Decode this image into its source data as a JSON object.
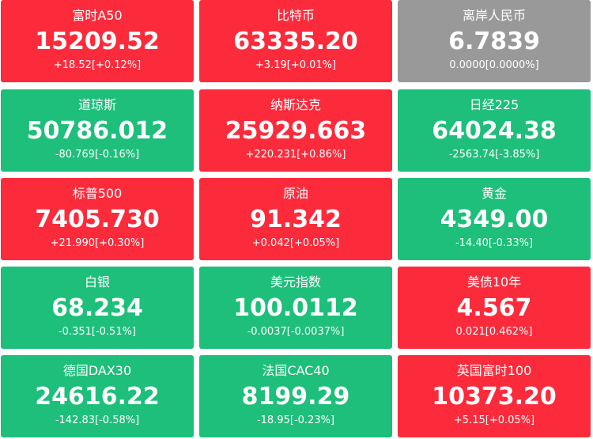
{
  "tiles": [
    {
      "name": "富时A50",
      "price": "15209.52",
      "change": "+18.52[+0.12%]",
      "color": "#fc2b3c"
    },
    {
      "name": "比特币",
      "price": "63335.20",
      "change": "+3.19[+0.01%]",
      "color": "#fc2b3c"
    },
    {
      "name": "离岸人民币",
      "price": "6.7839",
      "change": "0.0000[0.0000%]",
      "color": "#999999"
    },
    {
      "name": "道琼斯",
      "price": "50786.012",
      "change": "-80.769[-0.16%]",
      "color": "#1dbf7a"
    },
    {
      "name": "纳斯达克",
      "price": "25929.663",
      "change": "+220.231[+0.86%]",
      "color": "#fc2b3c"
    },
    {
      "name": "日经225",
      "price": "64024.38",
      "change": "-2563.74[-3.85%]",
      "color": "#1dbf7a"
    },
    {
      "name": "标普500",
      "price": "7405.730",
      "change": "+21.990[+0.30%]",
      "color": "#fc2b3c"
    },
    {
      "name": "原油",
      "price": "91.342",
      "change": "+0.042[+0.05%]",
      "color": "#fc2b3c"
    },
    {
      "name": "黄金",
      "price": "4349.00",
      "change": "-14.40[-0.33%]",
      "color": "#1dbf7a"
    },
    {
      "name": "白银",
      "price": "68.234",
      "change": "-0.351[-0.51%]",
      "color": "#1dbf7a"
    },
    {
      "name": "美元指数",
      "price": "100.0112",
      "change": "-0.0037[-0.0037%]",
      "color": "#1dbf7a"
    },
    {
      "name": "美债10年",
      "price": "4.567",
      "change": "0.021[0.462%]",
      "color": "#fc2b3c"
    },
    {
      "name": "德国DAX30",
      "price": "24616.22",
      "change": "-142.83[-0.58%]",
      "color": "#1dbf7a"
    },
    {
      "name": "法国CAC40",
      "price": "8199.29",
      "change": "-18.95[-0.23%]",
      "color": "#1dbf7a"
    },
    {
      "name": "英国富时100",
      "price": "10373.20",
      "change": "+5.15[+0.05%]",
      "color": "#fc2b3c"
    }
  ]
}
